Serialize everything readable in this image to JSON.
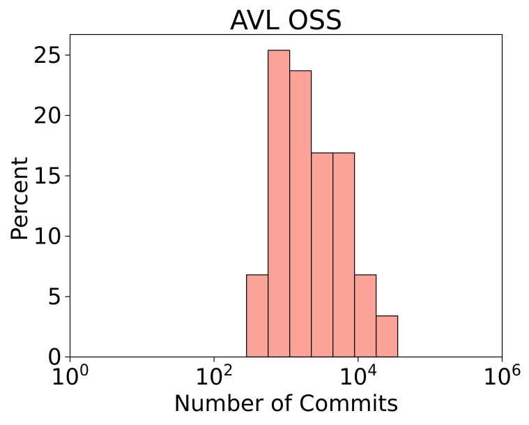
{
  "chart_data": {
    "type": "bar",
    "title": "AVL OSS",
    "xlabel": "Number of Commits",
    "ylabel": "Percent",
    "x_scale": "log10",
    "xlim": [
      1,
      1000000
    ],
    "ylim": [
      0,
      26.7
    ],
    "grid": false,
    "x_ticks": [
      {
        "value": 1,
        "base": "10",
        "exp": "0"
      },
      {
        "value": 100,
        "base": "10",
        "exp": "2"
      },
      {
        "value": 10000,
        "base": "10",
        "exp": "4"
      },
      {
        "value": 1000000,
        "base": "10",
        "exp": "6"
      }
    ],
    "y_ticks": [
      0,
      5,
      10,
      15,
      20,
      25
    ],
    "bar_color": "#fa8072",
    "bar_edge_color": "#000000",
    "bins": [
      {
        "x_start": 282,
        "x_end": 562,
        "value": 6.8
      },
      {
        "x_start": 562,
        "x_end": 1122,
        "value": 25.4
      },
      {
        "x_start": 1122,
        "x_end": 2239,
        "value": 23.7
      },
      {
        "x_start": 2239,
        "x_end": 4467,
        "value": 16.9
      },
      {
        "x_start": 4467,
        "x_end": 8913,
        "value": 16.9
      },
      {
        "x_start": 8913,
        "x_end": 17783,
        "value": 6.8
      },
      {
        "x_start": 17783,
        "x_end": 35481,
        "value": 3.4
      }
    ]
  }
}
